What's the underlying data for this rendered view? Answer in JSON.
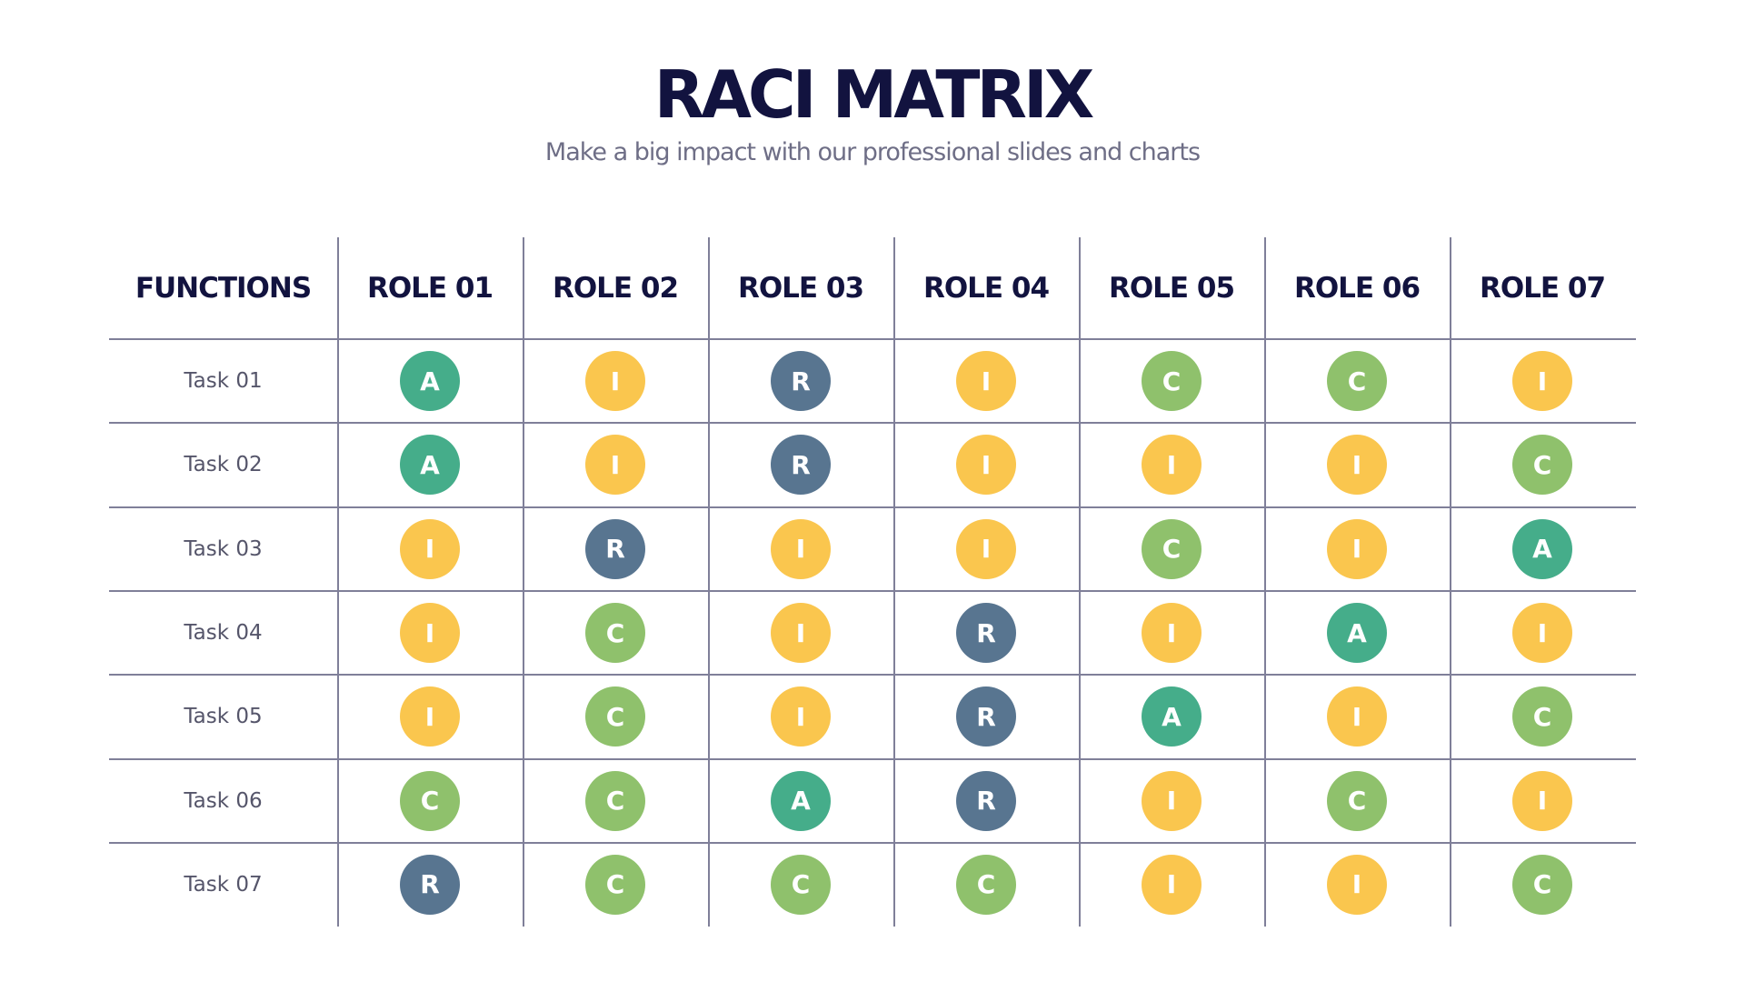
{
  "title": "RACI MATRIX",
  "subtitle": "Make a big impact with our professional slides and charts",
  "colors": {
    "A": "#45ad8a",
    "R": "#587590",
    "C": "#8fc16c",
    "I": "#fac64e",
    "text": "#12133f",
    "grid": "#7f7f99"
  },
  "header": {
    "functions": "FUNCTIONS",
    "roles": [
      "ROLE 01",
      "ROLE 02",
      "ROLE 03",
      "ROLE 04",
      "ROLE 05",
      "ROLE 06",
      "ROLE 07"
    ]
  },
  "rows": [
    {
      "task": "Task 01",
      "cells": [
        "A",
        "I",
        "R",
        "I",
        "C",
        "C",
        "I"
      ]
    },
    {
      "task": "Task 02",
      "cells": [
        "A",
        "I",
        "R",
        "I",
        "I",
        "I",
        "C"
      ]
    },
    {
      "task": "Task 03",
      "cells": [
        "I",
        "R",
        "I",
        "I",
        "C",
        "I",
        "A"
      ]
    },
    {
      "task": "Task 04",
      "cells": [
        "I",
        "C",
        "I",
        "R",
        "I",
        "A",
        "I"
      ]
    },
    {
      "task": "Task 05",
      "cells": [
        "I",
        "C",
        "I",
        "R",
        "A",
        "I",
        "C"
      ]
    },
    {
      "task": "Task 06",
      "cells": [
        "C",
        "C",
        "A",
        "R",
        "I",
        "C",
        "I"
      ]
    },
    {
      "task": "Task 07",
      "cells": [
        "R",
        "C",
        "C",
        "C",
        "I",
        "I",
        "C"
      ]
    }
  ]
}
